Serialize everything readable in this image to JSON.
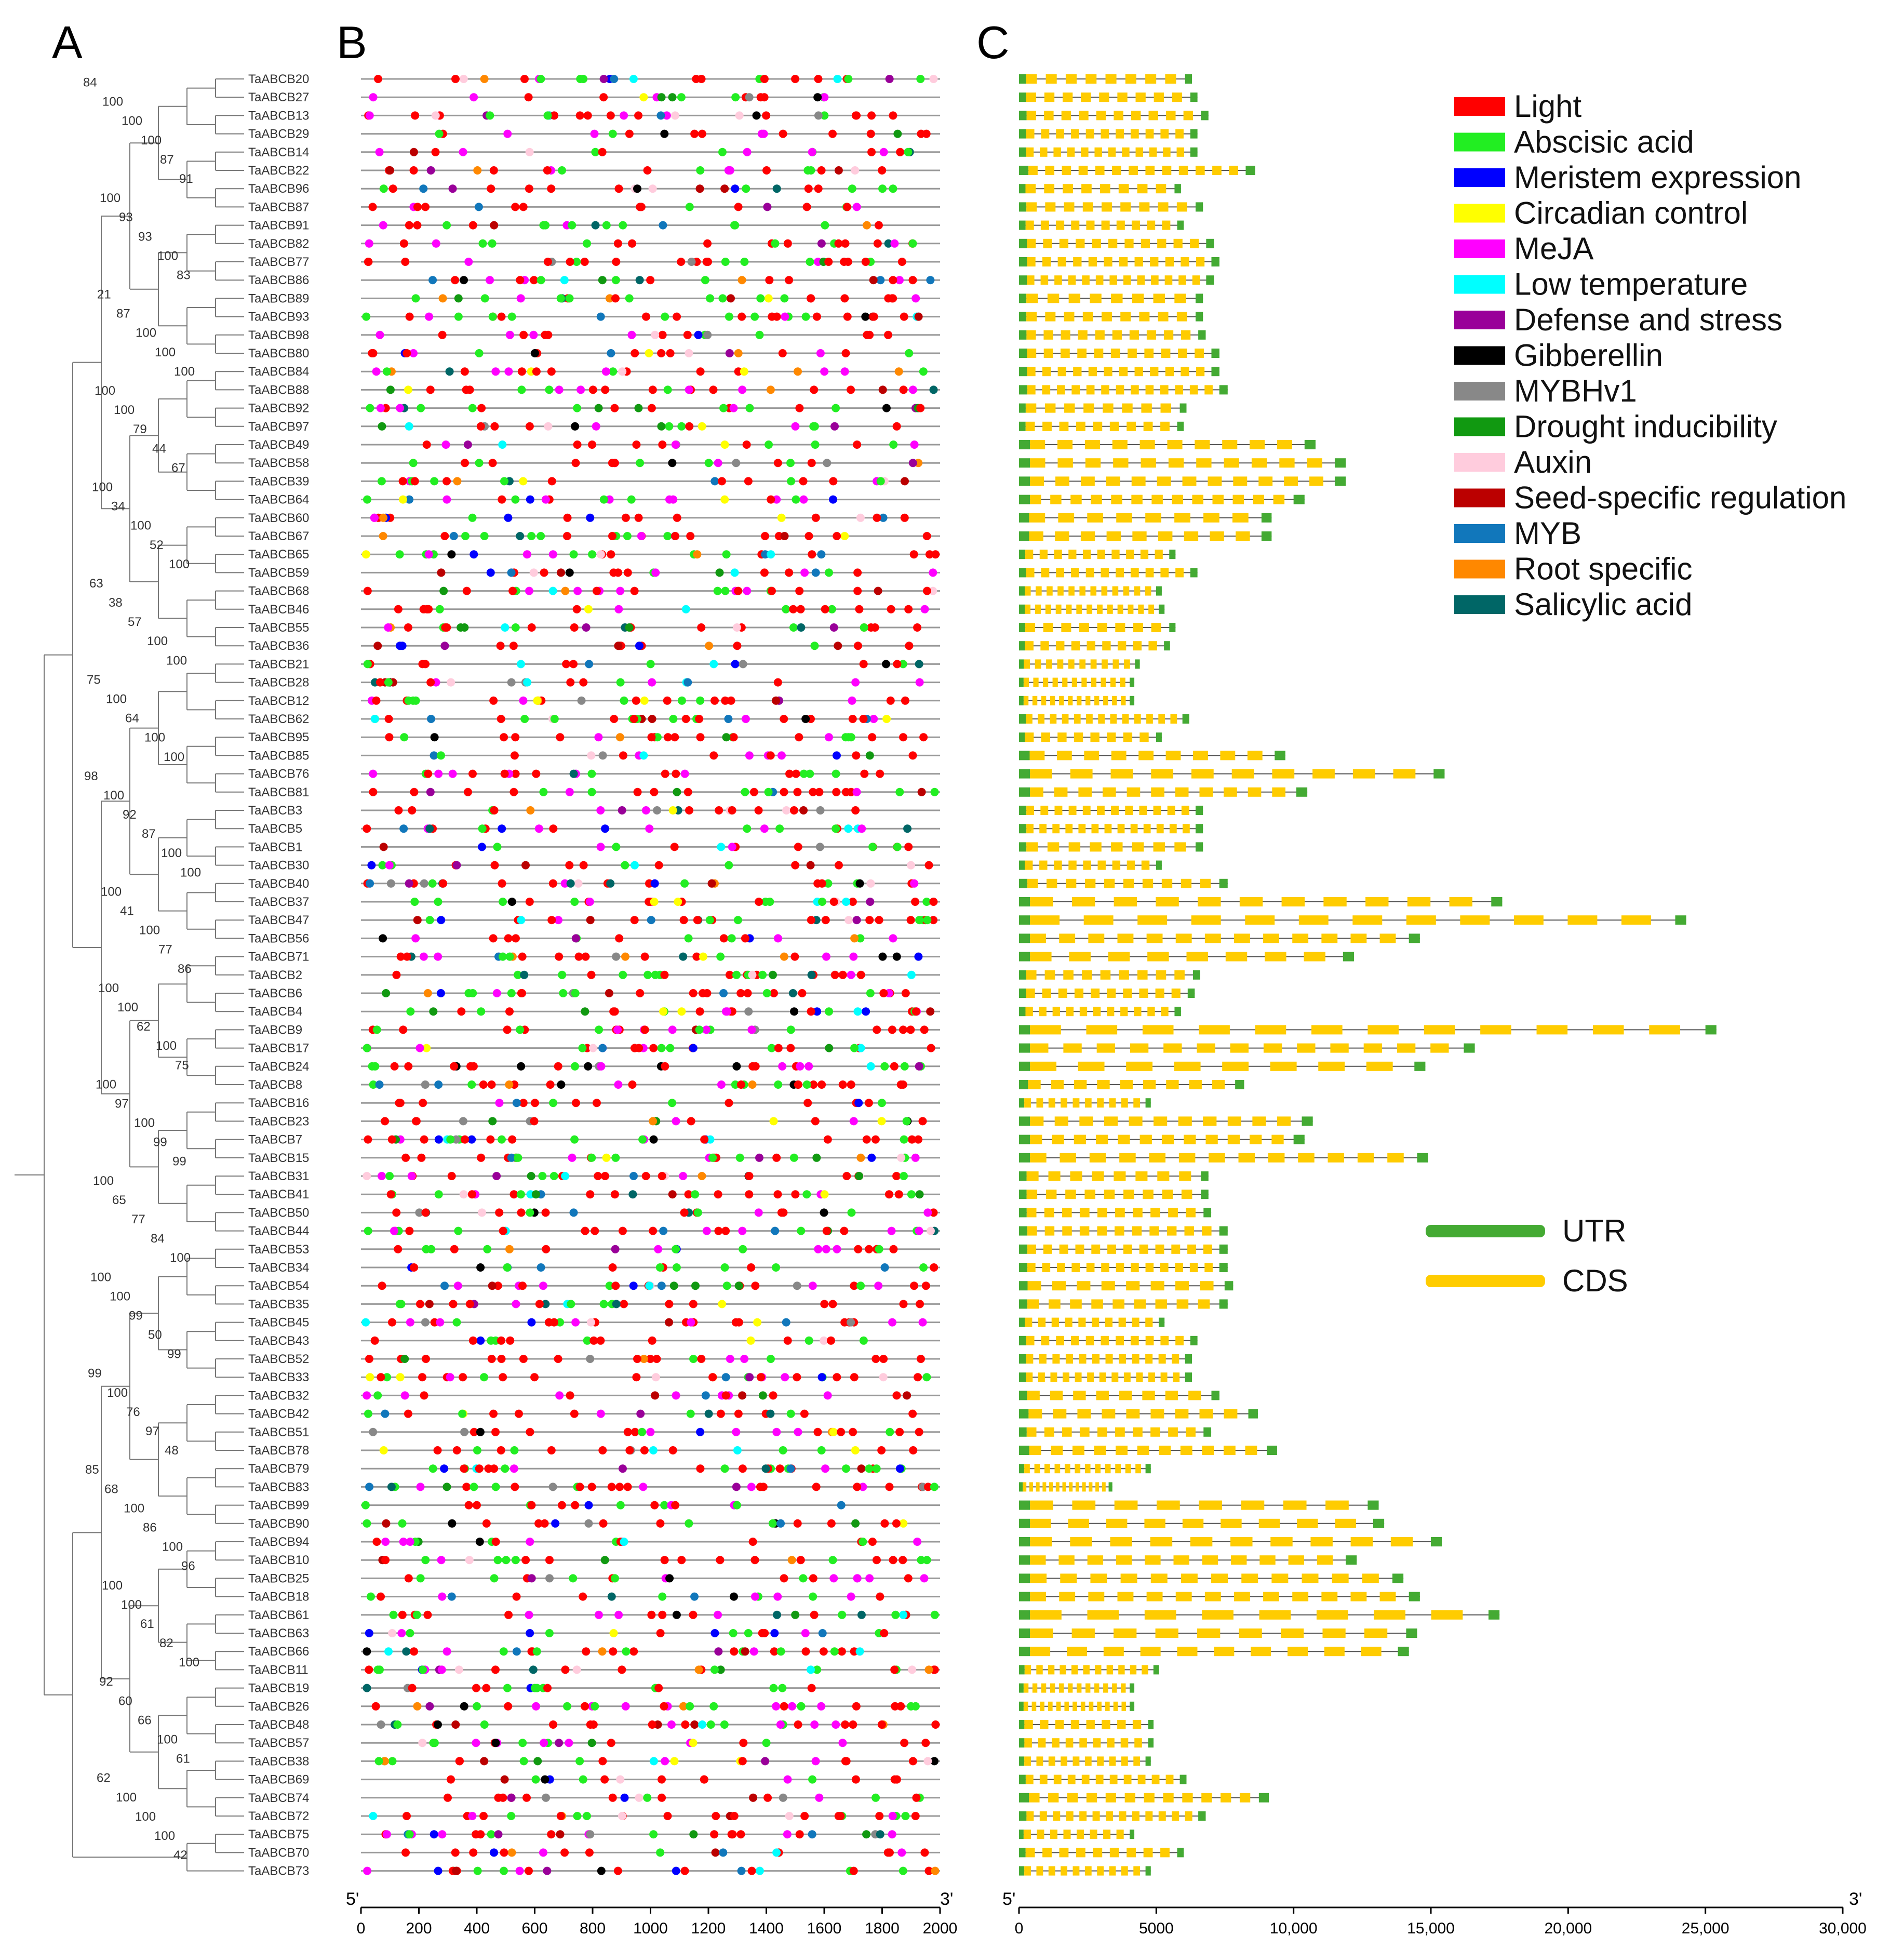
{
  "panels": {
    "a": "A",
    "b": "B",
    "c": "C"
  },
  "genes": [
    "TaABCB20",
    "TaABCB27",
    "TaABCB13",
    "TaABCB29",
    "TaABCB14",
    "TaABCB22",
    "TaABCB96",
    "TaABCB87",
    "TaABCB91",
    "TaABCB82",
    "TaABCB77",
    "TaABCB86",
    "TaABCB89",
    "TaABCB93",
    "TaABCB98",
    "TaABCB80",
    "TaABCB84",
    "TaABCB88",
    "TaABCB92",
    "TaABCB97",
    "TaABCB49",
    "TaABCB58",
    "TaABCB39",
    "TaABCB64",
    "TaABCB60",
    "TaABCB67",
    "TaABCB65",
    "TaABCB59",
    "TaABCB68",
    "TaABCB46",
    "TaABCB55",
    "TaABCB36",
    "TaABCB21",
    "TaABCB28",
    "TaABCB12",
    "TaABCB62",
    "TaABCB95",
    "TaABCB85",
    "TaABCB76",
    "TaABCB81",
    "TaABCB3",
    "TaABCB5",
    "TaABCB1",
    "TaABCB30",
    "TaABCB40",
    "TaABCB37",
    "TaABCB47",
    "TaABCB56",
    "TaABCB71",
    "TaABCB2",
    "TaABCB6",
    "TaABCB4",
    "TaABCB9",
    "TaABCB17",
    "TaABCB24",
    "TaABCB8",
    "TaABCB16",
    "TaABCB23",
    "TaABCB7",
    "TaABCB15",
    "TaABCB31",
    "TaABCB41",
    "TaABCB50",
    "TaABCB44",
    "TaABCB53",
    "TaABCB34",
    "TaABCB54",
    "TaABCB35",
    "TaABCB45",
    "TaABCB43",
    "TaABCB52",
    "TaABCB33",
    "TaABCB32",
    "TaABCB42",
    "TaABCB51",
    "TaABCB78",
    "TaABCB79",
    "TaABCB83",
    "TaABCB99",
    "TaABCB90",
    "TaABCB94",
    "TaABCB10",
    "TaABCB25",
    "TaABCB18",
    "TaABCB61",
    "TaABCB63",
    "TaABCB66",
    "TaABCB11",
    "TaABCB19",
    "TaABCB26",
    "TaABCB48",
    "TaABCB57",
    "TaABCB38",
    "TaABCB69",
    "TaABCB74",
    "TaABCB72",
    "TaABCB75",
    "TaABCB70",
    "TaABCB73"
  ],
  "tree_support": [
    "84",
    "100",
    "100",
    "100",
    "87",
    "91",
    "100",
    "93",
    "93",
    "100",
    "83",
    "21",
    "87",
    "100",
    "100",
    "100",
    "100",
    "100",
    "79",
    "44",
    "67",
    "100",
    "34",
    "100",
    "52",
    "100",
    "63",
    "38",
    "57",
    "100",
    "100",
    "75",
    "100",
    "64",
    "100",
    "100",
    "98",
    "100",
    "92",
    "87",
    "100",
    "100",
    "100",
    "41",
    "100",
    "77",
    "86",
    "100",
    "100",
    "62",
    "100",
    "75",
    "100",
    "97",
    "100",
    "99",
    "99",
    "100",
    "65",
    "77",
    "84",
    "100",
    "100",
    "100",
    "99",
    "50",
    "99",
    "99",
    "100",
    "76",
    "97",
    "48",
    "85",
    "68",
    "100",
    "86",
    "100",
    "96",
    "100",
    "100",
    "61",
    "82",
    "100",
    "92",
    "60",
    "66",
    "100",
    "61",
    "62",
    "100",
    "100",
    "100",
    "42"
  ],
  "legend": [
    {
      "label": "Light",
      "color": "#ff0000"
    },
    {
      "label": "Abscisic acid",
      "color": "#22ee22"
    },
    {
      "label": "Meristem expression",
      "color": "#0000ff"
    },
    {
      "label": "Circadian control",
      "color": "#ffff00"
    },
    {
      "label": "MeJA",
      "color": "#ff00ff"
    },
    {
      "label": "Low temperature",
      "color": "#00ffff"
    },
    {
      "label": "Defense and stress",
      "color": "#990099"
    },
    {
      "label": "Gibberellin",
      "color": "#000000"
    },
    {
      "label": "MYBHv1",
      "color": "#888888"
    },
    {
      "label": "Drought inducibility",
      "color": "#119911"
    },
    {
      "label": "Auxin",
      "color": "#ffccdd"
    },
    {
      "label": "Seed-specific regulation",
      "color": "#bb0000"
    },
    {
      "label": "MYB",
      "color": "#1177bb"
    },
    {
      "label": "Root specific",
      "color": "#ff8800"
    },
    {
      "label": "Salicylic acid",
      "color": "#006666"
    }
  ],
  "structure_legend": [
    {
      "label": "UTR",
      "color": "#44aa33"
    },
    {
      "label": "CDS",
      "color": "#ffcc00"
    }
  ],
  "axis_b": {
    "start_label": "5'",
    "end_label": "3'",
    "ticks": [
      "0",
      "200",
      "400",
      "600",
      "800",
      "1000",
      "1200",
      "1400",
      "1600",
      "1800",
      "2000"
    ]
  },
  "axis_c": {
    "start_label": "5'",
    "end_label": "3'",
    "ticks": [
      "0",
      "5000",
      "10,000",
      "15,000",
      "20,000",
      "25,000",
      "30,000"
    ]
  },
  "gene_lengths_bp": [
    6300,
    6500,
    6900,
    6500,
    6500,
    8600,
    5900,
    6700,
    6000,
    7100,
    7300,
    7100,
    6700,
    6700,
    6800,
    7300,
    7300,
    7600,
    6100,
    6000,
    10800,
    11900,
    11900,
    10400,
    9200,
    9200,
    5700,
    6500,
    5200,
    5300,
    5700,
    5500,
    4400,
    4200,
    4200,
    6200,
    5200,
    9700,
    15500,
    10500,
    6700,
    6700,
    6700,
    5200,
    7600,
    17600,
    24300,
    14600,
    12200,
    6600,
    6400,
    5900,
    25400,
    16600,
    14800,
    8200,
    4800,
    10700,
    10400,
    14900,
    6900,
    6900,
    7000,
    7600,
    7600,
    7600,
    7800,
    7600,
    5300,
    6500,
    6300,
    6300,
    7300,
    8700,
    7000,
    9400,
    4800,
    3400,
    13100,
    13300,
    15400,
    12300,
    14000,
    14600,
    17500,
    14500,
    14200,
    5100,
    4200,
    4200,
    4900,
    4900,
    4800,
    6100,
    9100,
    6800,
    4200,
    6000,
    4800
  ]
}
